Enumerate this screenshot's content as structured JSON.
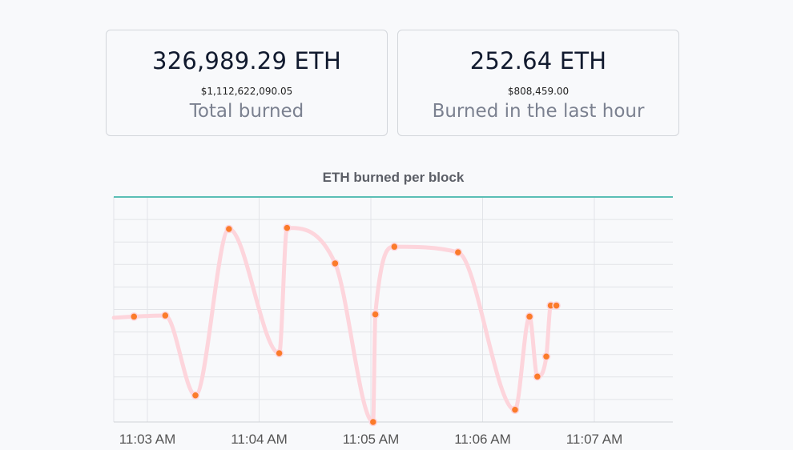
{
  "cards": [
    {
      "amount": "326,989.29 ETH",
      "usd": "$1,112,622,090.05",
      "label": "Total burned"
    },
    {
      "amount": "252.64 ETH",
      "usd": "$808,459.00",
      "label": "Burned in the last hour"
    }
  ],
  "colors": {
    "line": "#fdd5dc",
    "point": "#fb7b2a",
    "top_border": "#5bbfb5",
    "grid": "#e2e4e8"
  },
  "chart_data": {
    "type": "line",
    "title": "ETH burned per block",
    "x_ticks": [
      "11:03 AM",
      "11:04 AM",
      "11:05 AM",
      "11:06 AM",
      "11:07 AM"
    ],
    "y_ticks_shown": false,
    "grid": true,
    "series": [
      {
        "x_minutes_after_1103": [
          -0.3,
          -0.12,
          0.16,
          0.43,
          0.73,
          1.18,
          1.25,
          1.68,
          2.02,
          2.04,
          2.21,
          2.78,
          3.29,
          3.42,
          3.49,
          3.57,
          3.61,
          3.66
        ],
        "values": [
          0.47,
          0.475,
          0.48,
          0.12,
          0.87,
          0.31,
          0.875,
          0.715,
          0.0,
          0.485,
          0.79,
          0.765,
          0.055,
          0.475,
          0.205,
          0.295,
          0.525,
          0.525
        ],
        "value_unit": "relative (no y-axis labels shown)"
      }
    ]
  }
}
